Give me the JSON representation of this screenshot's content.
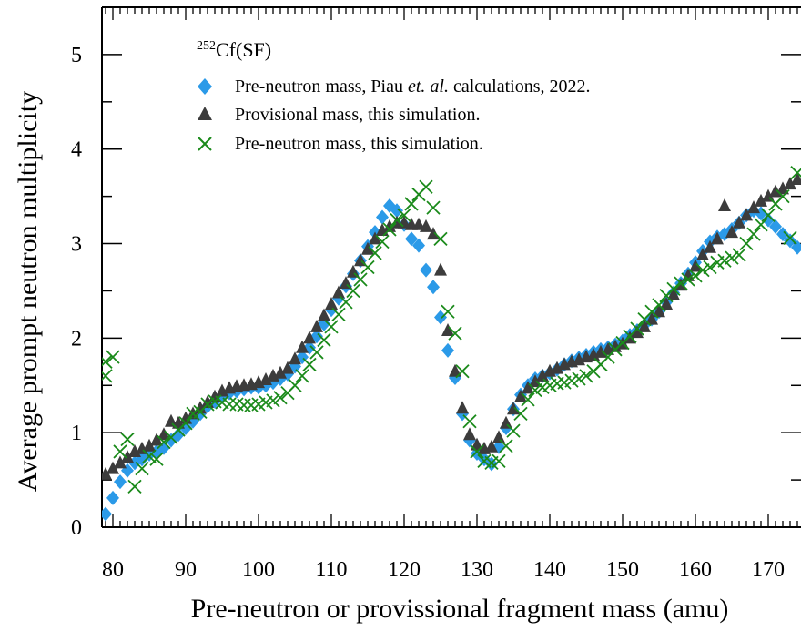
{
  "chart_data": {
    "type": "scatter",
    "title": "",
    "xlabel": "Pre-neutron or provissional fragment mass (amu)",
    "ylabel": "Average prompt neutron multiplicity",
    "xlim": [
      78.5,
      174.5
    ],
    "ylim": [
      0,
      5.5
    ],
    "xticks": [
      80,
      90,
      100,
      110,
      120,
      130,
      140,
      150,
      160,
      170
    ],
    "yticks": [
      0,
      1,
      2,
      3,
      4,
      5
    ],
    "grid": false,
    "legend": {
      "placement": "top-left",
      "title_sup": "252",
      "title_main": "Cf",
      "title_paren": "(SF)",
      "entries": [
        {
          "prefix": "Pre-neutron mass, Piau ",
          "italic": "et. al.",
          "suffix": " calculations, 2022."
        },
        {
          "prefix": "Provisional mass, this simulation.",
          "italic": "",
          "suffix": ""
        },
        {
          "prefix": "Pre-neutron mass, this simulation.",
          "italic": "",
          "suffix": ""
        }
      ]
    },
    "series": [
      {
        "name": "Pre-neutron mass, Piau et. al. calculations, 2022.",
        "marker": "diamond",
        "color": "#2b9ae8",
        "x": [
          79,
          80,
          81,
          82,
          83,
          84,
          85,
          86,
          87,
          88,
          89,
          90,
          91,
          92,
          93,
          94,
          95,
          96,
          97,
          98,
          99,
          100,
          101,
          102,
          103,
          104,
          105,
          106,
          107,
          108,
          109,
          110,
          111,
          112,
          113,
          114,
          115,
          116,
          117,
          118,
          119,
          120,
          121,
          122,
          123,
          124,
          125,
          126,
          127,
          128,
          129,
          130,
          131,
          132,
          133,
          134,
          135,
          136,
          137,
          138,
          139,
          140,
          141,
          142,
          143,
          144,
          145,
          146,
          147,
          148,
          149,
          150,
          151,
          152,
          153,
          154,
          155,
          156,
          157,
          158,
          159,
          160,
          161,
          162,
          163,
          164,
          165,
          166,
          167,
          168,
          169,
          170,
          171,
          172,
          173,
          174
        ],
        "y": [
          0.14,
          0.31,
          0.48,
          0.6,
          0.68,
          0.72,
          0.77,
          0.8,
          0.84,
          0.92,
          0.98,
          1.05,
          1.12,
          1.2,
          1.28,
          1.33,
          1.38,
          1.42,
          1.44,
          1.46,
          1.48,
          1.48,
          1.5,
          1.53,
          1.57,
          1.62,
          1.7,
          1.8,
          1.9,
          2.02,
          2.15,
          2.3,
          2.42,
          2.55,
          2.68,
          2.82,
          2.97,
          3.12,
          3.28,
          3.4,
          3.35,
          3.2,
          3.05,
          2.98,
          2.72,
          2.54,
          2.22,
          1.87,
          1.58,
          1.2,
          0.92,
          0.78,
          0.72,
          0.67,
          0.85,
          1.05,
          1.25,
          1.4,
          1.5,
          1.57,
          1.6,
          1.63,
          1.67,
          1.72,
          1.76,
          1.79,
          1.82,
          1.85,
          1.88,
          1.9,
          1.93,
          1.97,
          2.03,
          2.08,
          2.14,
          2.2,
          2.28,
          2.38,
          2.48,
          2.58,
          2.68,
          2.8,
          2.92,
          3.02,
          3.07,
          3.1,
          3.15,
          3.22,
          3.3,
          3.35,
          3.32,
          3.25,
          3.18,
          3.1,
          3.03,
          2.96
        ]
      },
      {
        "name": "Provisional mass, this simulation.",
        "marker": "triangle",
        "color": "#3c3c3c",
        "x": [
          79,
          80,
          81,
          82,
          83,
          84,
          85,
          86,
          87,
          88,
          89,
          90,
          91,
          92,
          93,
          94,
          95,
          96,
          97,
          98,
          99,
          100,
          101,
          102,
          103,
          104,
          105,
          106,
          107,
          108,
          109,
          110,
          111,
          112,
          113,
          114,
          115,
          116,
          117,
          118,
          119,
          120,
          121,
          122,
          123,
          124,
          125,
          126,
          127,
          128,
          129,
          130,
          131,
          132,
          133,
          134,
          135,
          136,
          137,
          138,
          139,
          140,
          141,
          142,
          143,
          144,
          145,
          146,
          147,
          148,
          149,
          150,
          151,
          152,
          153,
          154,
          155,
          156,
          157,
          158,
          159,
          160,
          161,
          162,
          163,
          164,
          165,
          166,
          167,
          168,
          169,
          170,
          171,
          172,
          173,
          174
        ],
        "y": [
          0.56,
          0.62,
          0.68,
          0.74,
          0.8,
          0.83,
          0.86,
          0.92,
          0.98,
          1.12,
          1.1,
          1.15,
          1.2,
          1.26,
          1.32,
          1.38,
          1.44,
          1.47,
          1.49,
          1.5,
          1.51,
          1.53,
          1.56,
          1.6,
          1.63,
          1.68,
          1.78,
          1.9,
          2.0,
          2.12,
          2.24,
          2.36,
          2.48,
          2.58,
          2.7,
          2.82,
          2.94,
          3.05,
          3.14,
          3.18,
          3.22,
          3.22,
          3.2,
          3.2,
          3.18,
          3.1,
          2.72,
          2.08,
          1.65,
          1.26,
          0.98,
          0.87,
          0.83,
          0.85,
          0.95,
          1.1,
          1.25,
          1.38,
          1.47,
          1.54,
          1.6,
          1.65,
          1.68,
          1.72,
          1.75,
          1.77,
          1.8,
          1.82,
          1.85,
          1.88,
          1.91,
          1.94,
          2.0,
          2.06,
          2.12,
          2.2,
          2.28,
          2.36,
          2.46,
          2.56,
          2.66,
          2.76,
          2.88,
          2.96,
          3.05,
          3.4,
          3.12,
          3.22,
          3.3,
          3.38,
          3.45,
          3.5,
          3.55,
          3.58,
          3.63,
          3.68
        ]
      },
      {
        "name": "Pre-neutron mass, this simulation.",
        "marker": "cross",
        "color": "#1a8a1a",
        "x": [
          79,
          79,
          80,
          81,
          82,
          83,
          84,
          85,
          86,
          87,
          88,
          89,
          90,
          91,
          92,
          93,
          94,
          95,
          96,
          97,
          98,
          99,
          100,
          101,
          102,
          103,
          104,
          105,
          106,
          107,
          108,
          109,
          110,
          111,
          112,
          113,
          114,
          115,
          116,
          117,
          118,
          119,
          120,
          121,
          122,
          123,
          124,
          125,
          126,
          127,
          128,
          129,
          130,
          131,
          132,
          133,
          134,
          135,
          136,
          137,
          138,
          139,
          140,
          141,
          142,
          143,
          144,
          145,
          146,
          147,
          148,
          149,
          150,
          151,
          152,
          153,
          154,
          155,
          156,
          157,
          158,
          159,
          160,
          161,
          162,
          163,
          164,
          165,
          166,
          167,
          168,
          169,
          170,
          171,
          172,
          173,
          174
        ],
        "y": [
          1.6,
          1.75,
          1.8,
          0.8,
          0.93,
          0.43,
          0.62,
          0.75,
          0.72,
          0.9,
          0.95,
          1.03,
          1.1,
          1.2,
          1.22,
          1.3,
          1.33,
          1.32,
          1.3,
          1.3,
          1.29,
          1.29,
          1.3,
          1.32,
          1.34,
          1.37,
          1.42,
          1.5,
          1.6,
          1.72,
          1.85,
          1.98,
          2.12,
          2.25,
          2.38,
          2.5,
          2.62,
          2.75,
          2.9,
          3.02,
          3.15,
          3.25,
          3.3,
          3.42,
          3.52,
          3.6,
          3.38,
          3.05,
          2.28,
          2.05,
          1.65,
          1.12,
          0.8,
          0.7,
          0.68,
          0.7,
          0.86,
          1.02,
          1.2,
          1.35,
          1.45,
          1.48,
          1.5,
          1.52,
          1.53,
          1.55,
          1.57,
          1.6,
          1.65,
          1.72,
          1.8,
          1.88,
          1.95,
          2.02,
          2.1,
          2.2,
          2.28,
          2.35,
          2.45,
          2.52,
          2.58,
          2.62,
          2.66,
          2.72,
          2.75,
          2.8,
          2.82,
          2.85,
          2.88,
          3.0,
          3.1,
          3.2,
          3.3,
          3.42,
          3.5,
          3.06,
          3.75
        ]
      }
    ]
  }
}
